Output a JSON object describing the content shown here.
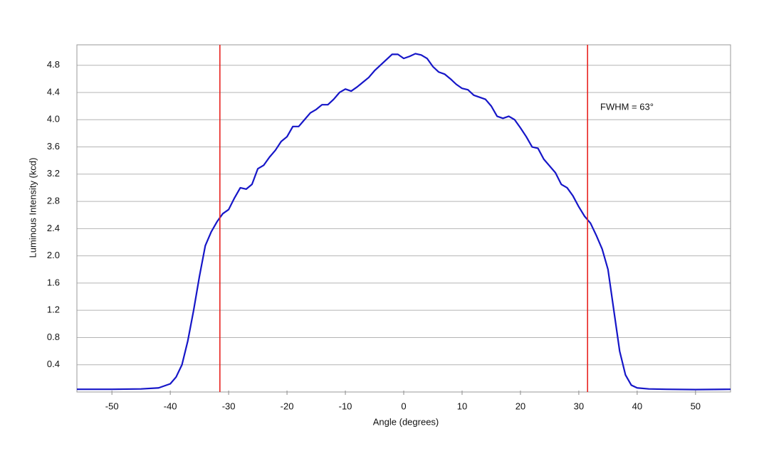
{
  "chart_data": {
    "type": "line",
    "xlabel": "Angle (degrees)",
    "ylabel": "Luminous Intensity (kcd)",
    "annotation": "FWHM = 63°",
    "xlim": [
      -56,
      56
    ],
    "ylim": [
      0,
      5.1
    ],
    "xticks": [
      -50,
      -40,
      -30,
      -20,
      -10,
      0,
      10,
      20,
      30,
      40,
      50
    ],
    "yticks": [
      0.4,
      0.8,
      1.2,
      1.6,
      {
        "value": 2,
        "label": "2.0"
      },
      2.4,
      2.8,
      3.2,
      3.6,
      {
        "value": 4,
        "label": "4.0"
      },
      4.4,
      4.8
    ],
    "grid": true,
    "markers": {
      "color": "#e8231f",
      "x": [
        -31.5,
        31.5
      ]
    },
    "series": [
      {
        "color": "#1616c8",
        "x": [
          -56,
          -50,
          -45,
          -42,
          -40,
          -39,
          -38,
          -37,
          -36,
          -35,
          -34,
          -33,
          -32,
          -31,
          -30,
          -29,
          -28,
          -27,
          -26,
          -25,
          -24,
          -23,
          -22,
          -21,
          -20,
          -19,
          -18,
          -17,
          -16,
          -15,
          -14,
          -13,
          -12,
          -11,
          -10,
          -9,
          -8,
          -7,
          -6,
          -5,
          -4,
          -3,
          -2,
          -1,
          0,
          1,
          2,
          3,
          4,
          5,
          6,
          7,
          8,
          9,
          10,
          11,
          12,
          13,
          14,
          15,
          16,
          17,
          18,
          19,
          20,
          21,
          22,
          23,
          24,
          25,
          26,
          27,
          28,
          29,
          30,
          31,
          32,
          33,
          34,
          35,
          36,
          37,
          38,
          39,
          40,
          42,
          45,
          50,
          56
        ],
        "values": [
          0.04,
          0.04,
          0.045,
          0.06,
          0.12,
          0.22,
          0.4,
          0.75,
          1.2,
          1.7,
          2.15,
          2.35,
          2.5,
          2.62,
          2.68,
          2.85,
          3.0,
          2.98,
          3.05,
          3.28,
          3.33,
          3.45,
          3.55,
          3.68,
          3.75,
          3.9,
          3.9,
          4.0,
          4.1,
          4.15,
          4.22,
          4.22,
          4.3,
          4.4,
          4.45,
          4.42,
          4.48,
          4.55,
          4.62,
          4.72,
          4.8,
          4.88,
          4.96,
          4.96,
          4.9,
          4.93,
          4.97,
          4.95,
          4.9,
          4.78,
          4.7,
          4.67,
          4.6,
          4.52,
          4.46,
          4.44,
          4.36,
          4.33,
          4.3,
          4.2,
          4.05,
          4.02,
          4.05,
          4.0,
          3.88,
          3.75,
          3.6,
          3.58,
          3.42,
          3.32,
          3.22,
          3.05,
          3.0,
          2.88,
          2.72,
          2.58,
          2.48,
          2.3,
          2.1,
          1.8,
          1.2,
          0.6,
          0.25,
          0.1,
          0.06,
          0.045,
          0.04,
          0.035,
          0.04
        ]
      }
    ]
  }
}
